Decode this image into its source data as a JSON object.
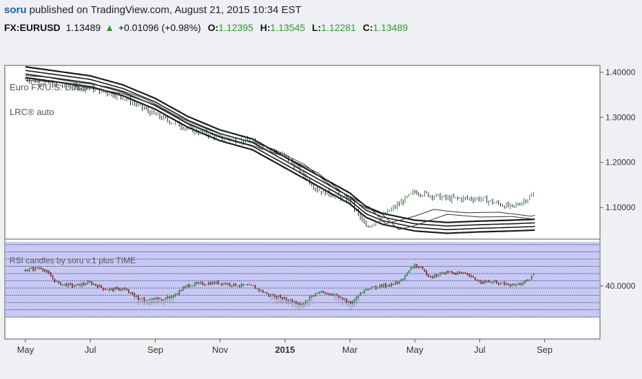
{
  "header": {
    "author": "soru",
    "text": " published on TradingView.com, August 21, 2015 10:34 EST"
  },
  "quote": {
    "symbol": "FX:EURUSD",
    "last": "1.13489",
    "arrow": "▲",
    "change": "+0.01096 (+0.98%)",
    "open_label": "O:",
    "open": "1.12395",
    "high_label": "H:",
    "high": "1.13545",
    "low_label": "L:",
    "low": "1.12281",
    "close_label": "C:",
    "close": "1.13489"
  },
  "chart_data": [
    {
      "type": "line",
      "title": "Euro FX/U.S. Dollar",
      "indicator_label": "LRC® auto",
      "yticks": [
        "1.40000",
        "1.30000",
        "1.20000",
        "1.10000"
      ],
      "ytick_values": [
        1.4,
        1.3,
        1.2,
        1.1
      ],
      "ylim": [
        1.03,
        1.415
      ],
      "xticks": [
        "May",
        "Jul",
        "Sep",
        "Nov",
        "2015",
        "Mar",
        "May",
        "Jul",
        "Sep"
      ],
      "xtick_months": [
        0,
        2,
        4,
        6,
        8,
        10,
        12,
        14,
        16
      ],
      "x_months": [
        0,
        1,
        2,
        3,
        4,
        5,
        6,
        7,
        8,
        9,
        10,
        10.5,
        11,
        12,
        13,
        14,
        15,
        15.7
      ],
      "series": [
        {
          "name": "price",
          "values": [
            1.385,
            1.37,
            1.365,
            1.345,
            1.305,
            1.275,
            1.255,
            1.245,
            1.215,
            1.14,
            1.115,
            1.055,
            1.08,
            1.135,
            1.12,
            1.12,
            1.1,
            1.13
          ]
        },
        {
          "name": "regression",
          "values": [
            1.4,
            1.39,
            1.38,
            1.36,
            1.33,
            1.29,
            1.26,
            1.24,
            1.2,
            1.16,
            1.12,
            1.09,
            1.075,
            1.06,
            1.055,
            1.058,
            1.06,
            1.062
          ]
        }
      ],
      "color": "#1a1a1a"
    },
    {
      "type": "line",
      "title": "RSI candles by soru v.1 plus TIME",
      "yticks": [
        "40.0000"
      ],
      "ytick_values": [
        40
      ],
      "ylim": [
        0,
        100
      ],
      "xticks": [
        "May",
        "Jul",
        "Sep",
        "Nov",
        "2015",
        "Mar",
        "May",
        "Jul",
        "Sep"
      ],
      "x_months": [
        0,
        0.5,
        1,
        1.5,
        2,
        2.5,
        3,
        3.5,
        4,
        4.5,
        5,
        5.5,
        6,
        6.5,
        7,
        7.5,
        8,
        8.5,
        9,
        9.5,
        10,
        10.5,
        11,
        11.5,
        12,
        12.5,
        13,
        13.5,
        14,
        14.5,
        15,
        15.5,
        15.7
      ],
      "series": [
        {
          "name": "RSI",
          "values": [
            63,
            66,
            45,
            42,
            46,
            37,
            38,
            25,
            24,
            27,
            43,
            45,
            46,
            43,
            41,
            30,
            26,
            18,
            34,
            30,
            20,
            38,
            42,
            46,
            70,
            54,
            60,
            58,
            48,
            46,
            42,
            48,
            61
          ]
        }
      ],
      "colors": {
        "up": "#2a7a3a",
        "down": "#8b1a1a",
        "band": "#c7c9f0",
        "band_line": "#3a3fb5"
      }
    }
  ]
}
